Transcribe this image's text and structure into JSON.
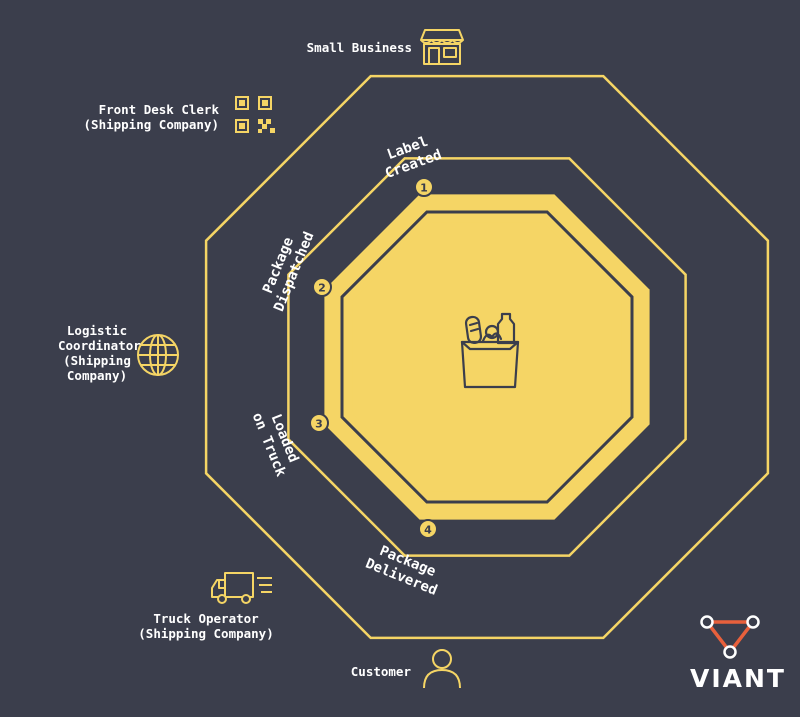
{
  "colors": {
    "background": "#3b3e4c",
    "accent": "#f5d565",
    "text": "#ffffff"
  },
  "center_icon": "grocery-bag-icon",
  "actors": [
    {
      "id": "small-business",
      "label": "Small Business",
      "icon": "storefront-icon"
    },
    {
      "id": "front-desk-clerk",
      "label": "Front Desk Clerk\n(Shipping Company)",
      "icon": "qr-code-icon"
    },
    {
      "id": "logistic-coordinator",
      "label": "Logistic\nCoordinator\n(Shipping\nCompany)",
      "icon": "globe-icon"
    },
    {
      "id": "truck-operator",
      "label": "Truck Operator\n(Shipping Company)",
      "icon": "truck-icon"
    },
    {
      "id": "customer",
      "label": "Customer",
      "icon": "person-icon"
    }
  ],
  "steps": [
    {
      "number": "1",
      "line1": "Label",
      "line2": "Created"
    },
    {
      "number": "2",
      "line1": "Package",
      "line2": "Dispatched"
    },
    {
      "number": "3",
      "line1": "Loaded",
      "line2": "on Truck"
    },
    {
      "number": "4",
      "line1": "Package",
      "line2": "Delivered"
    }
  ],
  "logo": {
    "text": "VIANT",
    "icon": "viant-triangle-logo-icon"
  }
}
